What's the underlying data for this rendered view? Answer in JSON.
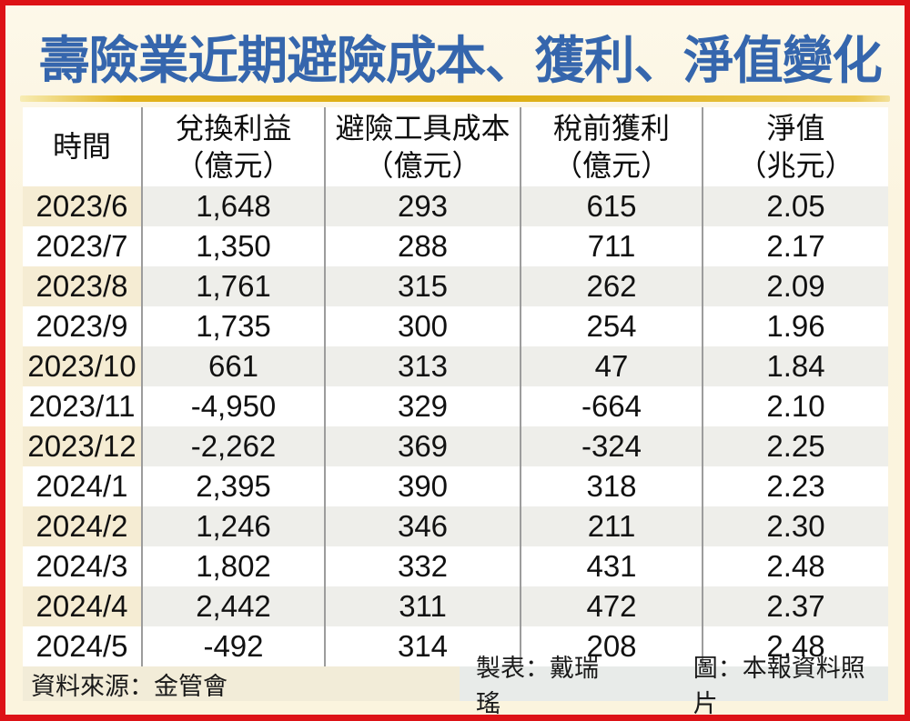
{
  "title": "壽險業近期避險成本、獲利、淨值變化",
  "colors": {
    "border_red": "#dd1216",
    "background_cream": "#fbf4df",
    "title_blue": "#3566ad",
    "gold_rule": "#ddae12",
    "shaded_time_cell": "#f5ecd3",
    "shaded_value_cell": "#eeeeea",
    "footer_left_bg": "#f2ecd8",
    "footer_right_bg": "#e8ebe9",
    "divider_gray": "#9c9c9c",
    "text_black": "#111111"
  },
  "chart_data": {
    "type": "table",
    "title": "壽險業近期避險成本、獲利、淨值變化",
    "columns": [
      {
        "label": "時間",
        "unit": ""
      },
      {
        "label": "兌換利益",
        "unit": "（億元）"
      },
      {
        "label": "避險工具成本",
        "unit": "（億元）"
      },
      {
        "label": "稅前獲利",
        "unit": "（億元）"
      },
      {
        "label": "淨值",
        "unit": "（兆元）"
      }
    ],
    "rows": [
      [
        "2023/6",
        "1,648",
        "293",
        "615",
        "2.05"
      ],
      [
        "2023/7",
        "1,350",
        "288",
        "711",
        "2.17"
      ],
      [
        "2023/8",
        "1,761",
        "315",
        "262",
        "2.09"
      ],
      [
        "2023/9",
        "1,735",
        "300",
        "254",
        "1.96"
      ],
      [
        "2023/10",
        "661",
        "313",
        "47",
        "1.84"
      ],
      [
        "2023/11",
        "-4,950",
        "329",
        "-664",
        "2.10"
      ],
      [
        "2023/12",
        "-2,262",
        "369",
        "-324",
        "2.25"
      ],
      [
        "2024/1",
        "2,395",
        "390",
        "318",
        "2.23"
      ],
      [
        "2024/2",
        "1,246",
        "346",
        "211",
        "2.30"
      ],
      [
        "2024/3",
        "1,802",
        "332",
        "431",
        "2.48"
      ],
      [
        "2024/4",
        "2,442",
        "311",
        "472",
        "2.37"
      ],
      [
        "2024/5",
        "-492",
        "314",
        "208",
        "2.48"
      ]
    ]
  },
  "footer": {
    "source": "資料來源：金管會",
    "table_by": "製表：戴瑞瑤",
    "photo_credit": "圖：本報資料照片"
  }
}
